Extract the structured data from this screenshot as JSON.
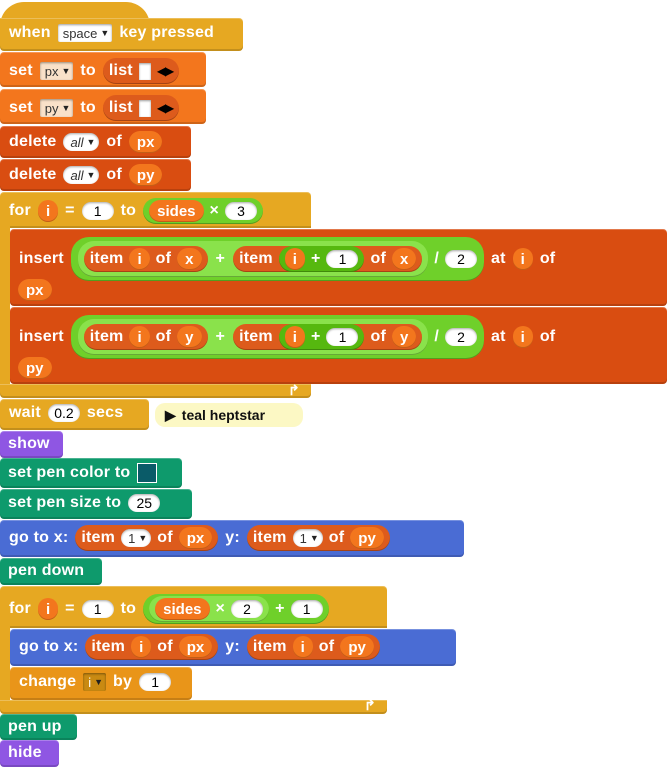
{
  "hat": {
    "when": "when",
    "key": "space",
    "key_pressed": "key pressed"
  },
  "set_px": {
    "set": "set",
    "var": "px",
    "to": "to",
    "list": "list"
  },
  "set_py": {
    "set": "set",
    "var": "py",
    "to": "to",
    "list": "list"
  },
  "delete_px": {
    "delete": "delete",
    "which": "all",
    "of": "of",
    "list": "px"
  },
  "delete_py": {
    "delete": "delete",
    "which": "all",
    "of": "of",
    "list": "py"
  },
  "for1": {
    "for": "for",
    "var": "i",
    "eq": "=",
    "start": "1",
    "to": "to",
    "sides": "sides",
    "times": "×",
    "mult": "3"
  },
  "insert1": {
    "insert": "insert",
    "item": "item",
    "i": "i",
    "of": "of",
    "x": "x",
    "plus": "+",
    "one": "1",
    "div": "/",
    "two": "2",
    "at": "at",
    "list": "px"
  },
  "insert2": {
    "insert": "insert",
    "item": "item",
    "i": "i",
    "of": "of",
    "y": "y",
    "plus": "+",
    "one": "1",
    "div": "/",
    "two": "2",
    "at": "at",
    "list": "py"
  },
  "wait": {
    "wait": "wait",
    "value": "0.2",
    "secs": "secs"
  },
  "comment": {
    "text": "teal heptstar"
  },
  "show": {
    "label": "show"
  },
  "pen_color": {
    "label": "set pen color to",
    "color": "#0a5b68"
  },
  "pen_size": {
    "label": "set pen size to",
    "value": "25"
  },
  "goto1": {
    "goto": "go to x:",
    "item": "item",
    "idx": "1",
    "of": "of",
    "px": "px",
    "y": "y:",
    "py": "py"
  },
  "pen_down": {
    "label": "pen down"
  },
  "for2": {
    "for": "for",
    "var": "i",
    "eq": "=",
    "start": "1",
    "to": "to",
    "sides": "sides",
    "times": "×",
    "mult": "2",
    "plus": "+",
    "add": "1"
  },
  "goto2": {
    "goto": "go to x:",
    "item": "item",
    "i": "i",
    "of": "of",
    "px": "px",
    "y": "y:",
    "py": "py"
  },
  "change": {
    "change": "change",
    "var": "i",
    "by": "by",
    "value": "1"
  },
  "pen_up": {
    "label": "pen up"
  },
  "hide": {
    "label": "hide"
  }
}
